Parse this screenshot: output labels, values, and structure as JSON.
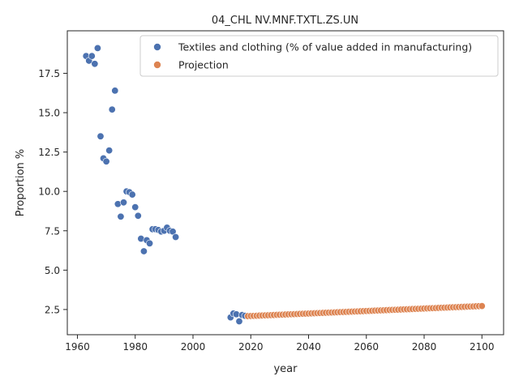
{
  "chart_data": {
    "type": "scatter",
    "title": "04_CHL NV.MNF.TXTL.ZS.UN",
    "xlabel": "year",
    "ylabel": "Proportion %",
    "xlim": [
      1956.5,
      2107.5
    ],
    "ylim": [
      0.9,
      20.2
    ],
    "xticks": [
      1960,
      1980,
      2000,
      2020,
      2040,
      2060,
      2080,
      2100
    ],
    "yticks": [
      2.5,
      5.0,
      7.5,
      10.0,
      12.5,
      15.0,
      17.5
    ],
    "grid": false,
    "legend_position": "top-right",
    "series": [
      {
        "name": "Textiles and clothing (% of value added in manufacturing)",
        "color": "#4c72b0",
        "points": [
          [
            1963,
            18.6
          ],
          [
            1964,
            18.3
          ],
          [
            1965,
            18.6
          ],
          [
            1966,
            18.1
          ],
          [
            1967,
            19.1
          ],
          [
            1968,
            13.5
          ],
          [
            1969,
            12.1
          ],
          [
            1970,
            11.9
          ],
          [
            1971,
            12.6
          ],
          [
            1972,
            15.2
          ],
          [
            1973,
            16.4
          ],
          [
            1974,
            9.2
          ],
          [
            1975,
            8.4
          ],
          [
            1976,
            9.3
          ],
          [
            1977,
            10.0
          ],
          [
            1978,
            9.95
          ],
          [
            1979,
            9.8
          ],
          [
            1980,
            9.0
          ],
          [
            1981,
            8.45
          ],
          [
            1982,
            7.0
          ],
          [
            1983,
            6.2
          ],
          [
            1984,
            6.9
          ],
          [
            1985,
            6.7
          ],
          [
            1986,
            7.6
          ],
          [
            1987,
            7.6
          ],
          [
            1988,
            7.55
          ],
          [
            1989,
            7.45
          ],
          [
            1990,
            7.5
          ],
          [
            1991,
            7.7
          ],
          [
            1992,
            7.5
          ],
          [
            1993,
            7.45
          ],
          [
            1994,
            7.1
          ],
          [
            2013,
            2.0
          ],
          [
            2014,
            2.25
          ],
          [
            2015,
            2.2
          ],
          [
            2016,
            1.75
          ],
          [
            2017,
            2.15
          ],
          [
            2018,
            2.1
          ]
        ]
      },
      {
        "name": "Projection",
        "color": "#dd8452",
        "x_start": 2019,
        "x_end": 2100,
        "y_start": 2.08,
        "y_end": 2.72
      }
    ]
  }
}
